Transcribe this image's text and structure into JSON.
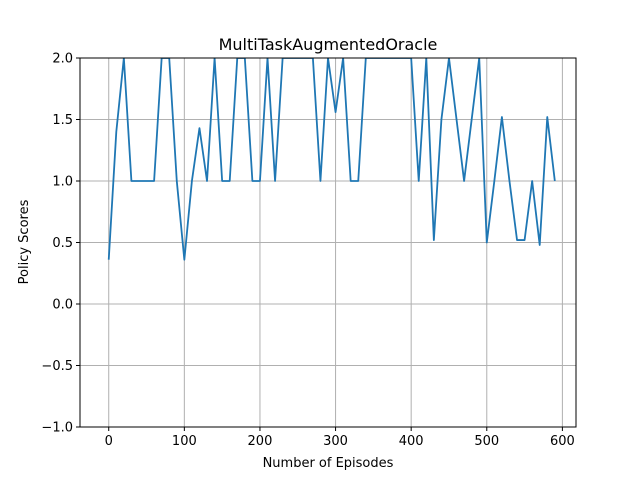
{
  "chart_data": {
    "type": "line",
    "title": "MultiTaskAugmentedOracle",
    "xlabel": "Number of Episodes",
    "ylabel": "Policy Scores",
    "xlim": [
      -38,
      618
    ],
    "ylim": [
      -1.0,
      2.0
    ],
    "xticks": [
      0,
      100,
      200,
      300,
      400,
      500,
      600
    ],
    "yticks": [
      -1.0,
      -0.5,
      0.0,
      0.5,
      1.0,
      1.5,
      2.0
    ],
    "xtick_labels": [
      "0",
      "100",
      "200",
      "300",
      "400",
      "500",
      "600"
    ],
    "ytick_labels": [
      "−1.0",
      "−0.5",
      "0.0",
      "0.5",
      "1.0",
      "1.5",
      "2.0"
    ],
    "grid": true,
    "line_color": "#1f77b4",
    "x": [
      0,
      10,
      20,
      30,
      40,
      50,
      60,
      70,
      80,
      90,
      100,
      110,
      120,
      130,
      140,
      150,
      160,
      170,
      180,
      190,
      200,
      210,
      220,
      230,
      240,
      250,
      260,
      270,
      280,
      290,
      300,
      310,
      320,
      330,
      340,
      350,
      360,
      370,
      380,
      390,
      400,
      410,
      420,
      430,
      440,
      450,
      460,
      470,
      480,
      490,
      500,
      510,
      520,
      530,
      540,
      550,
      560,
      570,
      580,
      590
    ],
    "y": [
      0.36,
      1.4,
      2.0,
      1.0,
      1.0,
      1.0,
      1.0,
      2.0,
      2.0,
      1.0,
      0.36,
      1.0,
      1.43,
      1.0,
      2.0,
      1.0,
      1.0,
      2.0,
      2.0,
      1.0,
      1.0,
      2.0,
      1.0,
      2.0,
      2.0,
      2.0,
      2.0,
      2.0,
      1.0,
      2.0,
      1.56,
      2.0,
      1.0,
      1.0,
      2.0,
      2.0,
      2.0,
      2.0,
      2.0,
      2.0,
      2.0,
      1.0,
      2.0,
      0.52,
      1.5,
      2.0,
      1.5,
      1.0,
      1.5,
      2.0,
      0.5,
      1.0,
      1.52,
      1.0,
      0.52,
      0.52,
      1.0,
      0.48,
      1.52,
      1.0
    ]
  }
}
